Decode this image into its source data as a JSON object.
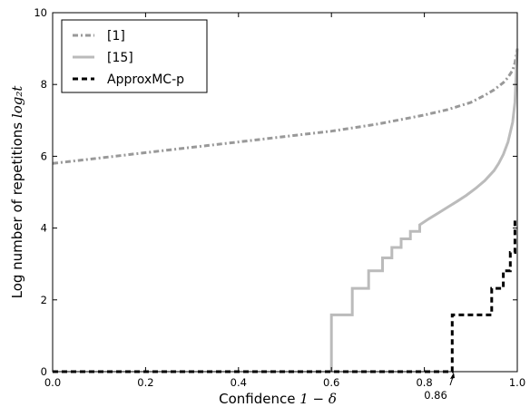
{
  "chart_data": {
    "type": "line",
    "xlabel_text": "Confidence",
    "xlabel_math": "1 − δ",
    "ylabel_text": "Log number of repetitions",
    "ylabel_math": "log₂t",
    "xlim": [
      0,
      1
    ],
    "ylim": [
      0,
      10
    ],
    "xticks": [
      0.0,
      0.2,
      0.4,
      0.6,
      0.8,
      1.0
    ],
    "xtick_labels": [
      "0.0",
      "0.2",
      "0.4",
      "0.6",
      "0.8",
      "1.0"
    ],
    "yticks": [
      0,
      2,
      4,
      6,
      8,
      10
    ],
    "ytick_labels": [
      "0",
      "2",
      "4",
      "6",
      "8",
      "10"
    ],
    "grid": false,
    "legend_position": "top-left",
    "annotation": {
      "text": "0.86",
      "x": 0.86,
      "y": 0
    },
    "series": [
      {
        "name": "[1]",
        "style": "dash-dot",
        "color": "#999999",
        "x": [
          0.0,
          0.1,
          0.2,
          0.3,
          0.4,
          0.5,
          0.6,
          0.7,
          0.8,
          0.85,
          0.9,
          0.93,
          0.95,
          0.97,
          0.98,
          0.99,
          0.995,
          1.0
        ],
        "y": [
          5.8,
          5.95,
          6.1,
          6.25,
          6.4,
          6.55,
          6.7,
          6.9,
          7.15,
          7.3,
          7.5,
          7.7,
          7.85,
          8.05,
          8.2,
          8.4,
          8.6,
          9.0
        ]
      },
      {
        "name": "[15]",
        "style": "solid",
        "color": "#bbbbbb",
        "x": [
          0.6,
          0.6,
          0.645,
          0.645,
          0.68,
          0.68,
          0.71,
          0.71,
          0.73,
          0.73,
          0.75,
          0.75,
          0.77,
          0.77,
          0.79,
          0.79,
          0.81,
          0.83,
          0.85,
          0.87,
          0.89,
          0.91,
          0.93,
          0.95,
          0.96,
          0.97,
          0.98,
          0.99,
          0.995,
          1.0
        ],
        "y": [
          0,
          1.58,
          1.58,
          2.32,
          2.32,
          2.81,
          2.81,
          3.17,
          3.17,
          3.46,
          3.46,
          3.7,
          3.7,
          3.91,
          3.91,
          4.09,
          4.26,
          4.42,
          4.58,
          4.74,
          4.91,
          5.1,
          5.32,
          5.6,
          5.8,
          6.05,
          6.4,
          6.95,
          7.5,
          9.0
        ]
      },
      {
        "name": "ApproxMC-p",
        "style": "dashed",
        "color": "#000000",
        "x": [
          0.0,
          0.86,
          0.86,
          0.945,
          0.945,
          0.97,
          0.97,
          0.985,
          0.985,
          0.995,
          0.995,
          1.0
        ],
        "y": [
          0,
          0,
          1.58,
          1.58,
          2.32,
          2.32,
          2.81,
          2.81,
          3.32,
          3.32,
          4.25,
          4.25
        ]
      }
    ]
  }
}
